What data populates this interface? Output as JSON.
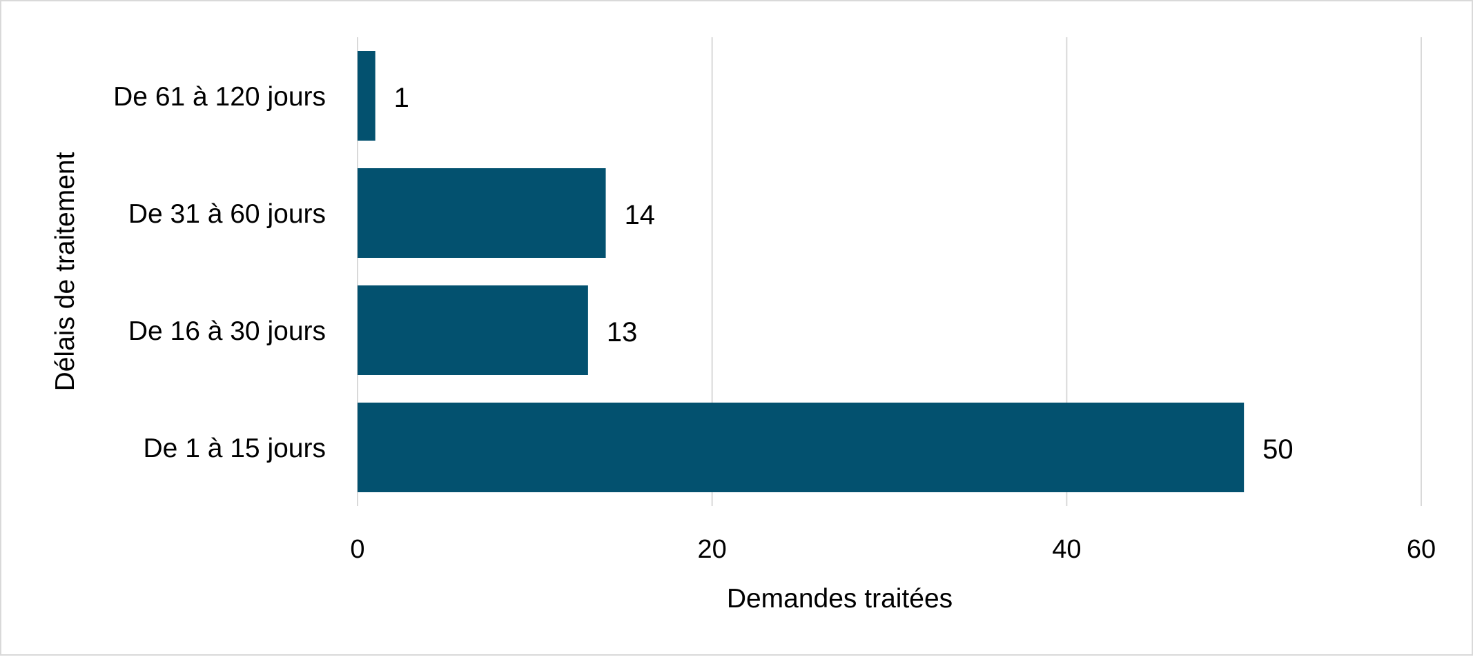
{
  "chart_data": {
    "type": "bar",
    "orientation": "horizontal",
    "categories": [
      "De 61 à 120 jours",
      "De 31 à 60 jours",
      "De 16 à 30 jours",
      "De 1 à 15 jours"
    ],
    "values": [
      1,
      14,
      13,
      50
    ],
    "data_labels": [
      "1",
      "14",
      "13",
      "50"
    ],
    "xlabel": "Demandes traitées",
    "ylabel": "Délais de traitement",
    "xlim": [
      0,
      60
    ],
    "xticks": [
      0,
      20,
      40,
      60
    ],
    "xtick_labels": [
      "0",
      "20",
      "40",
      "60"
    ],
    "grid": "vertical",
    "legend": "none",
    "bar_color": "#03516f",
    "grid_color": "#d9d9d9"
  }
}
